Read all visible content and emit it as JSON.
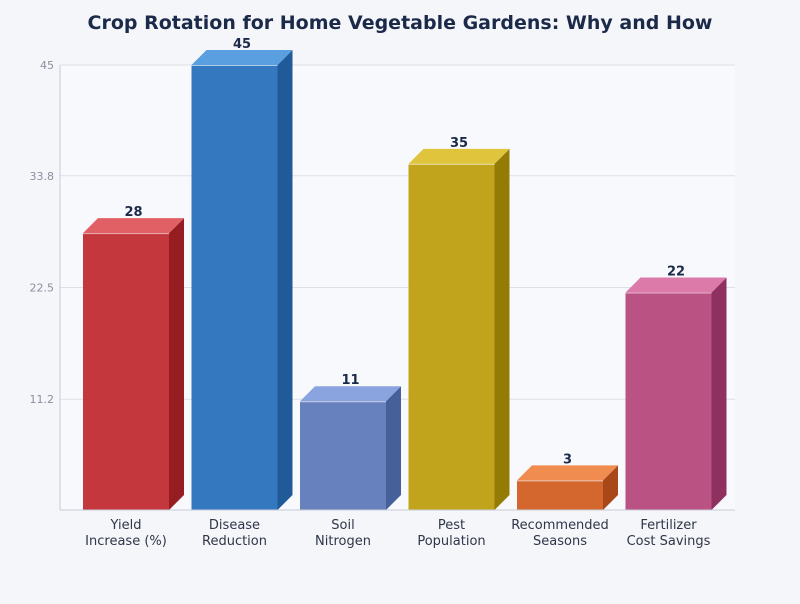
{
  "chart_data": {
    "type": "bar",
    "title": "Crop Rotation for Home Vegetable Gardens: Why and How",
    "xlabel": "",
    "ylabel": "",
    "categories": [
      [
        "Yield",
        "Increase (%)"
      ],
      [
        "Disease",
        "Reduction"
      ],
      [
        "Soil",
        "Nitrogen"
      ],
      [
        "Pest",
        "Population"
      ],
      [
        "Recommended",
        "Seasons"
      ],
      [
        "Fertilizer",
        "Cost Savings"
      ]
    ],
    "values": [
      28,
      45,
      11,
      35,
      3,
      22
    ],
    "ylim": [
      0,
      45
    ],
    "yticks": [
      "11.2",
      "22.5",
      "33.8",
      "45"
    ],
    "grid": true,
    "style": "3d",
    "colors": [
      {
        "front": "#c4373d",
        "top": "#e06066",
        "side": "#961e22"
      },
      {
        "front": "#3478c0",
        "top": "#5aa0e0",
        "side": "#205a98"
      },
      {
        "front": "#6781bf",
        "top": "#8aa4e0",
        "side": "#46609a"
      },
      {
        "front": "#c2a41c",
        "top": "#e0c43c",
        "side": "#937b06"
      },
      {
        "front": "#d4672e",
        "top": "#f08c50",
        "side": "#a84818"
      },
      {
        "front": "#ba5283",
        "top": "#dc7aaa",
        "side": "#8e3060"
      }
    ]
  }
}
